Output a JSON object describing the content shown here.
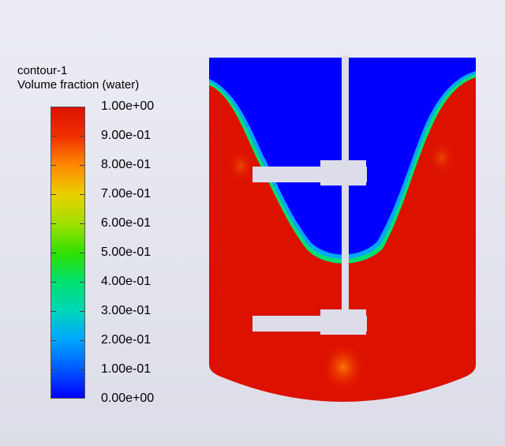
{
  "legend": {
    "title_line1": "contour-1",
    "title_line2": "Volume fraction (water)",
    "labels": [
      "1.00e+00",
      "9.00e-01",
      "8.00e-01",
      "7.00e-01",
      "6.00e-01",
      "5.00e-01",
      "4.00e-01",
      "3.00e-01",
      "2.00e-01",
      "1.00e-01",
      "0.00e+00"
    ],
    "colormap": [
      "#0000ff",
      "#0059ff",
      "#00a6ff",
      "#00d7b8",
      "#00e070",
      "#32e000",
      "#a0e000",
      "#e8d000",
      "#ff8a00",
      "#f03000",
      "#dd1100"
    ]
  },
  "colors": {
    "water": "#dd1100",
    "air": "#0000ff",
    "shaft": "#dcdde8",
    "background": "#e4e5ef"
  }
}
